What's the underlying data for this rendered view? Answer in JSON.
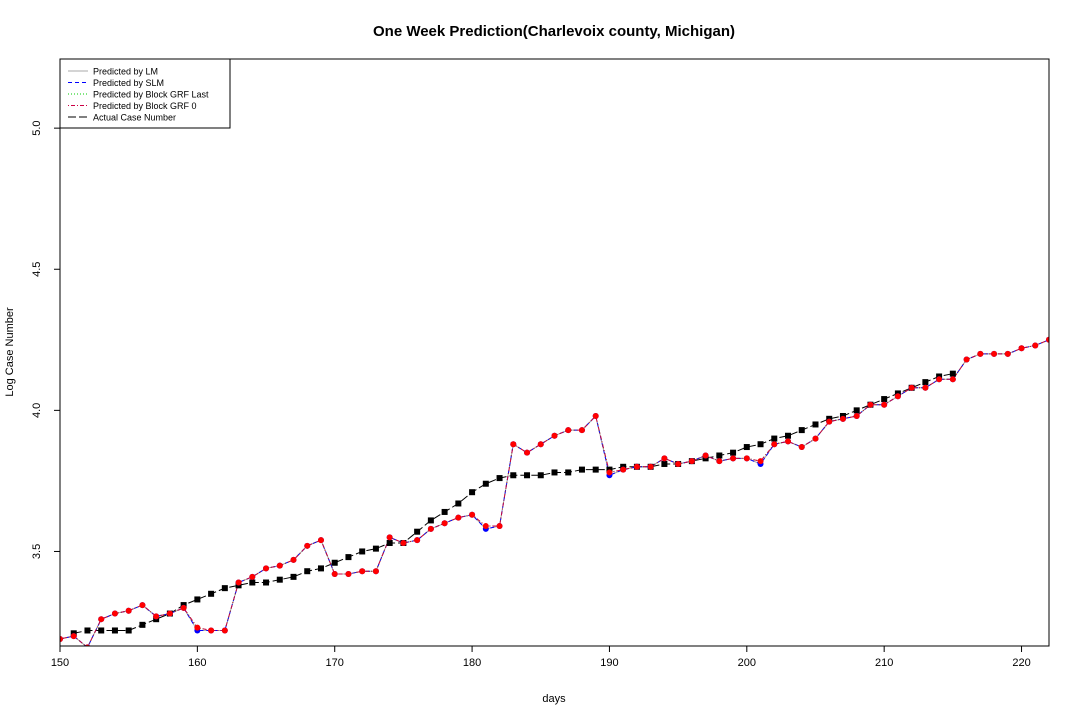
{
  "chart_data": {
    "type": "line",
    "title": "One Week Prediction(Charlevoix county, Michigan)",
    "xlabel": "days",
    "ylabel": "Log Case Number",
    "xlim": [
      150,
      222
    ],
    "ylim": [
      3.165,
      5.245
    ],
    "xticks": [
      150,
      160,
      170,
      180,
      190,
      200,
      210,
      220
    ],
    "xtick_labels": [
      "150",
      "160",
      "170",
      "180",
      "190",
      "200",
      "210",
      "220"
    ],
    "yticks": [
      3.5,
      4.0,
      4.5,
      5.0
    ],
    "ytick_labels": [
      "3.5",
      "4.0",
      "4.5",
      "5.0"
    ],
    "legend_position": "top-left",
    "x": [
      150,
      151,
      152,
      153,
      154,
      155,
      156,
      157,
      158,
      159,
      160,
      161,
      162,
      163,
      164,
      165,
      166,
      167,
      168,
      169,
      170,
      171,
      172,
      173,
      174,
      175,
      176,
      177,
      178,
      179,
      180,
      181,
      182,
      183,
      184,
      185,
      186,
      187,
      188,
      189,
      190,
      191,
      192,
      193,
      194,
      195,
      196,
      197,
      198,
      199,
      200,
      201,
      202,
      203,
      204,
      205,
      206,
      207,
      208,
      209,
      210,
      211,
      212,
      213,
      214,
      215,
      216,
      217,
      218,
      219,
      220,
      221,
      222
    ],
    "series": [
      {
        "name": "Predicted by LM",
        "color": "#aaaaaa",
        "dash": "solid",
        "marker": "none",
        "values": [
          3.19,
          3.2,
          3.16,
          3.26,
          3.28,
          3.29,
          3.31,
          3.27,
          3.28,
          3.3,
          3.22,
          3.22,
          3.22,
          3.39,
          3.41,
          3.44,
          3.45,
          3.47,
          3.52,
          3.54,
          3.42,
          3.42,
          3.43,
          3.43,
          3.55,
          3.53,
          3.54,
          3.58,
          3.6,
          3.62,
          3.63,
          3.58,
          3.59,
          3.88,
          3.85,
          3.88,
          3.91,
          3.93,
          3.93,
          3.98,
          3.77,
          3.79,
          3.8,
          3.8,
          3.83,
          3.81,
          3.82,
          3.84,
          3.82,
          3.83,
          3.83,
          3.81,
          3.88,
          3.89,
          3.87,
          3.9,
          3.96,
          3.97,
          3.98,
          4.02,
          4.02,
          4.05,
          4.08,
          4.08,
          4.11,
          4.11,
          4.18,
          4.2,
          4.2,
          4.2,
          4.22,
          4.23,
          4.25
        ]
      },
      {
        "name": "Predicted by SLM",
        "color": "#0000ff",
        "dash": "dashed",
        "marker": "circle",
        "values": [
          3.19,
          3.2,
          3.16,
          3.26,
          3.28,
          3.29,
          3.31,
          3.27,
          3.28,
          3.3,
          3.22,
          3.22,
          3.22,
          3.39,
          3.41,
          3.44,
          3.45,
          3.47,
          3.52,
          3.54,
          3.42,
          3.42,
          3.43,
          3.43,
          3.55,
          3.53,
          3.54,
          3.58,
          3.6,
          3.62,
          3.63,
          3.58,
          3.59,
          3.88,
          3.85,
          3.88,
          3.91,
          3.93,
          3.93,
          3.98,
          3.77,
          3.79,
          3.8,
          3.8,
          3.83,
          3.81,
          3.82,
          3.84,
          3.82,
          3.83,
          3.83,
          3.81,
          3.88,
          3.89,
          3.87,
          3.9,
          3.96,
          3.97,
          3.98,
          4.02,
          4.02,
          4.05,
          4.08,
          4.08,
          4.11,
          4.11,
          4.18,
          4.2,
          4.2,
          4.2,
          4.22,
          4.23,
          4.25
        ]
      },
      {
        "name": "Predicted by Block GRF Last",
        "color": "#00cc00",
        "dash": "dotted",
        "marker": "none",
        "values": [
          3.19,
          3.2,
          3.16,
          3.26,
          3.28,
          3.29,
          3.31,
          3.27,
          3.28,
          3.3,
          3.23,
          3.22,
          3.22,
          3.39,
          3.41,
          3.44,
          3.45,
          3.47,
          3.52,
          3.54,
          3.42,
          3.42,
          3.43,
          3.43,
          3.55,
          3.53,
          3.54,
          3.58,
          3.6,
          3.62,
          3.63,
          3.59,
          3.59,
          3.88,
          3.85,
          3.88,
          3.91,
          3.93,
          3.93,
          3.98,
          3.78,
          3.79,
          3.8,
          3.8,
          3.83,
          3.81,
          3.82,
          3.84,
          3.82,
          3.83,
          3.83,
          3.82,
          3.88,
          3.89,
          3.87,
          3.9,
          3.96,
          3.97,
          3.98,
          4.02,
          4.02,
          4.05,
          4.08,
          4.08,
          4.11,
          4.11,
          4.18,
          4.2,
          4.2,
          4.2,
          4.22,
          4.23,
          4.25
        ]
      },
      {
        "name": "Predicted by Block GRF 0",
        "color": "#cc0044",
        "dash": "dotdash",
        "marker": "circle-red",
        "values": [
          3.19,
          3.2,
          3.16,
          3.26,
          3.28,
          3.29,
          3.31,
          3.27,
          3.28,
          3.3,
          3.23,
          3.22,
          3.22,
          3.39,
          3.41,
          3.44,
          3.45,
          3.47,
          3.52,
          3.54,
          3.42,
          3.42,
          3.43,
          3.43,
          3.55,
          3.53,
          3.54,
          3.58,
          3.6,
          3.62,
          3.63,
          3.59,
          3.59,
          3.88,
          3.85,
          3.88,
          3.91,
          3.93,
          3.93,
          3.98,
          3.78,
          3.79,
          3.8,
          3.8,
          3.83,
          3.81,
          3.82,
          3.84,
          3.82,
          3.83,
          3.83,
          3.82,
          3.88,
          3.89,
          3.87,
          3.9,
          3.96,
          3.97,
          3.98,
          4.02,
          4.02,
          4.05,
          4.08,
          4.08,
          4.11,
          4.11,
          4.18,
          4.2,
          4.2,
          4.2,
          4.22,
          4.23,
          4.25
        ]
      },
      {
        "name": "Actual Case Number",
        "color": "#000000",
        "dash": "longdash",
        "marker": "square",
        "values": [
          null,
          3.21,
          3.22,
          3.22,
          3.22,
          3.22,
          3.24,
          3.26,
          3.28,
          3.31,
          3.33,
          3.35,
          3.37,
          3.38,
          3.39,
          3.39,
          3.4,
          3.41,
          3.43,
          3.44,
          3.46,
          3.48,
          3.5,
          3.51,
          3.53,
          3.53,
          3.57,
          3.61,
          3.64,
          3.67,
          3.71,
          3.74,
          3.76,
          3.77,
          3.77,
          3.77,
          3.78,
          3.78,
          3.79,
          3.79,
          3.79,
          3.8,
          3.8,
          3.8,
          3.81,
          3.81,
          3.82,
          3.83,
          3.84,
          3.85,
          3.87,
          3.88,
          3.9,
          3.91,
          3.93,
          3.95,
          3.97,
          3.98,
          4.0,
          4.02,
          4.04,
          4.06,
          4.08,
          4.1,
          4.12,
          4.13,
          null,
          null,
          null,
          null,
          null,
          null,
          null
        ]
      }
    ]
  }
}
